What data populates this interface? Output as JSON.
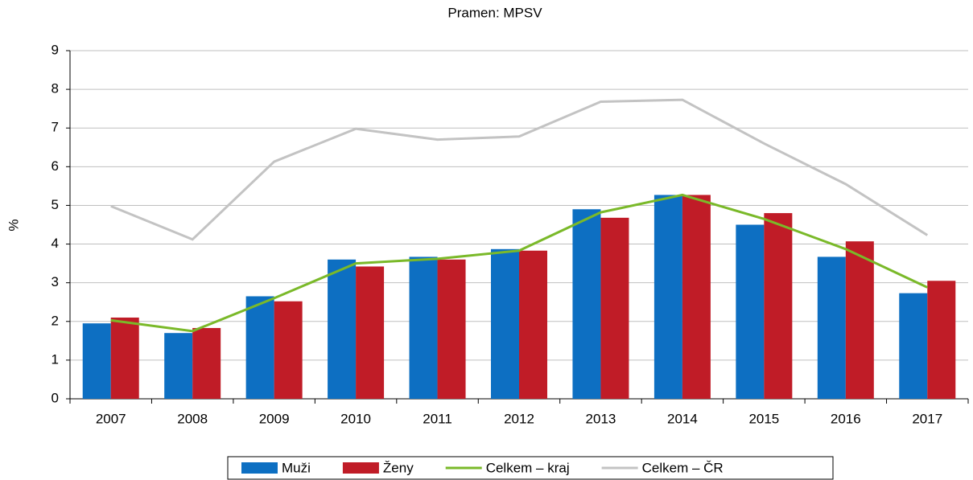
{
  "chart_data": {
    "type": "bar_line",
    "subtitle": "Pramen: MPSV",
    "ylabel": "%",
    "categories": [
      "2007",
      "2008",
      "2009",
      "2010",
      "2011",
      "2012",
      "2013",
      "2014",
      "2015",
      "2016",
      "2017"
    ],
    "series": [
      {
        "name": "Muži",
        "type": "bar",
        "color": "#0d6fc2",
        "values": [
          1.95,
          1.7,
          2.65,
          3.6,
          3.67,
          3.87,
          4.9,
          5.27,
          4.5,
          3.67,
          2.73
        ]
      },
      {
        "name": "Ženy",
        "type": "bar",
        "color": "#c01c27",
        "values": [
          2.1,
          1.83,
          2.52,
          3.42,
          3.6,
          3.83,
          4.68,
          5.27,
          4.8,
          4.07,
          3.05
        ]
      },
      {
        "name": "Celkem – kraj",
        "type": "line",
        "color": "#7ab929",
        "values": [
          2.03,
          1.75,
          2.6,
          3.5,
          3.62,
          3.83,
          4.82,
          5.27,
          4.65,
          3.87,
          2.88
        ]
      },
      {
        "name": "Celkem – ČR",
        "type": "line",
        "color": "#c3c3c3",
        "values": [
          4.98,
          4.12,
          6.13,
          6.98,
          6.7,
          6.78,
          7.68,
          7.73,
          6.6,
          5.55,
          4.23
        ]
      }
    ],
    "ylim": [
      0,
      9
    ],
    "yticks": [
      0,
      1,
      2,
      3,
      4,
      5,
      6,
      7,
      8,
      9
    ],
    "grid": true,
    "legend": "bottom"
  }
}
